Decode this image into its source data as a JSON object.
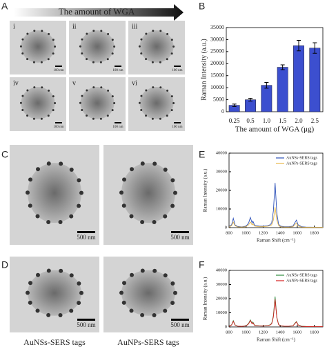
{
  "panel_labels": [
    "A",
    "B",
    "C",
    "D",
    "E",
    "F"
  ],
  "wga_arrow_label": "The  amount of WGA",
  "micrographs_a": [
    {
      "label": "i",
      "scale": "100 nm"
    },
    {
      "label": "ii",
      "scale": "100 nm"
    },
    {
      "label": "iii",
      "scale": "100 nm"
    },
    {
      "label": "iv",
      "scale": "100 nm"
    },
    {
      "label": "v",
      "scale": "100 nm"
    },
    {
      "label": "vi",
      "scale": "100 nm"
    }
  ],
  "micrographs_c": [
    {
      "scale": "500 nm"
    },
    {
      "scale": "500 nm"
    }
  ],
  "micrographs_d": [
    {
      "scale": "500 nm"
    },
    {
      "scale": "500 nm"
    }
  ],
  "column_labels": [
    "AuNSs-SERS tags",
    "AuNPs-SERS tags"
  ],
  "chart_data": [
    {
      "type": "bar",
      "xlabel": "The  amount of WGA (μg)",
      "ylabel": "Raman Intensity (a.u.)",
      "categories": [
        "0.25",
        "0.5",
        "1.0",
        "1.5",
        "2.0",
        "2.5"
      ],
      "values": [
        2700,
        5000,
        11000,
        18500,
        27500,
        26500
      ],
      "errors": [
        500,
        600,
        1200,
        1000,
        2200,
        2200
      ],
      "color": "#3c4fcf",
      "ylim": [
        0,
        35000
      ],
      "yticks": [
        0,
        5000,
        10000,
        15000,
        20000,
        25000,
        30000,
        35000
      ]
    },
    {
      "type": "line",
      "xlabel": "Raman Shift (cm⁻¹)",
      "ylabel": "Raman Intensity (a.u.)",
      "legend": "upper right",
      "x": [
        800,
        830,
        850,
        870,
        900,
        950,
        1000,
        1030,
        1050,
        1070,
        1080,
        1100,
        1150,
        1200,
        1250,
        1280,
        1300,
        1320,
        1340,
        1360,
        1380,
        1400,
        1450,
        1500,
        1550,
        1570,
        1590,
        1610,
        1650,
        1700,
        1800,
        1900
      ],
      "series": [
        {
          "name": "AuNSs-SERS tags",
          "color": "#2b4fb8",
          "values": [
            500,
            1500,
            5000,
            1500,
            600,
            400,
            800,
            2500,
            5500,
            2500,
            3500,
            1200,
            800,
            700,
            1000,
            1500,
            2500,
            9000,
            24000,
            8000,
            2000,
            800,
            500,
            500,
            800,
            2500,
            4000,
            1500,
            500,
            300,
            200,
            200
          ]
        },
        {
          "name": "AuNPs-SERS tags",
          "color": "#e8b84a",
          "values": [
            300,
            1000,
            3000,
            1000,
            400,
            300,
            500,
            1500,
            3000,
            1500,
            2000,
            800,
            500,
            500,
            700,
            1000,
            1500,
            4000,
            11000,
            4000,
            1200,
            500,
            300,
            300,
            500,
            1500,
            2500,
            900,
            300,
            200,
            200,
            200
          ]
        }
      ],
      "xlim": [
        800,
        1900
      ],
      "xticks": [
        800,
        1000,
        1200,
        1400,
        1600,
        1800
      ],
      "ylim": [
        0,
        40000
      ],
      "yticks": [
        0,
        10000,
        20000,
        30000,
        40000
      ]
    },
    {
      "type": "line",
      "xlabel": "Raman Shift (cm⁻¹)",
      "ylabel": "Raman Intensity (a.u.)",
      "legend": "upper right",
      "x": [
        800,
        830,
        850,
        870,
        900,
        950,
        1000,
        1030,
        1050,
        1070,
        1080,
        1100,
        1150,
        1200,
        1250,
        1280,
        1300,
        1320,
        1340,
        1360,
        1380,
        1400,
        1450,
        1500,
        1550,
        1570,
        1590,
        1610,
        1650,
        1700,
        1800,
        1900
      ],
      "series": [
        {
          "name": "AuNSs-SERS tags",
          "color": "#2e8b3e",
          "values": [
            500,
            1500,
            4500,
            1500,
            600,
            400,
            800,
            2500,
            5000,
            2500,
            3500,
            1200,
            800,
            700,
            1000,
            1500,
            2500,
            8000,
            21500,
            7000,
            2000,
            800,
            500,
            500,
            800,
            2500,
            3800,
            1500,
            500,
            300,
            200,
            200
          ]
        },
        {
          "name": "AuNPs-SERS tags",
          "color": "#d42020",
          "values": [
            400,
            1300,
            4000,
            1300,
            500,
            400,
            700,
            2200,
            4500,
            2200,
            3000,
            1000,
            700,
            600,
            900,
            1300,
            2200,
            7000,
            19500,
            6500,
            1800,
            700,
            500,
            500,
            700,
            2200,
            3500,
            1300,
            400,
            300,
            200,
            200
          ]
        }
      ],
      "xlim": [
        800,
        1900
      ],
      "xticks": [
        800,
        1000,
        1200,
        1400,
        1600,
        1800
      ],
      "ylim": [
        0,
        40000
      ],
      "yticks": [
        0,
        10000,
        20000,
        30000,
        40000
      ]
    }
  ]
}
